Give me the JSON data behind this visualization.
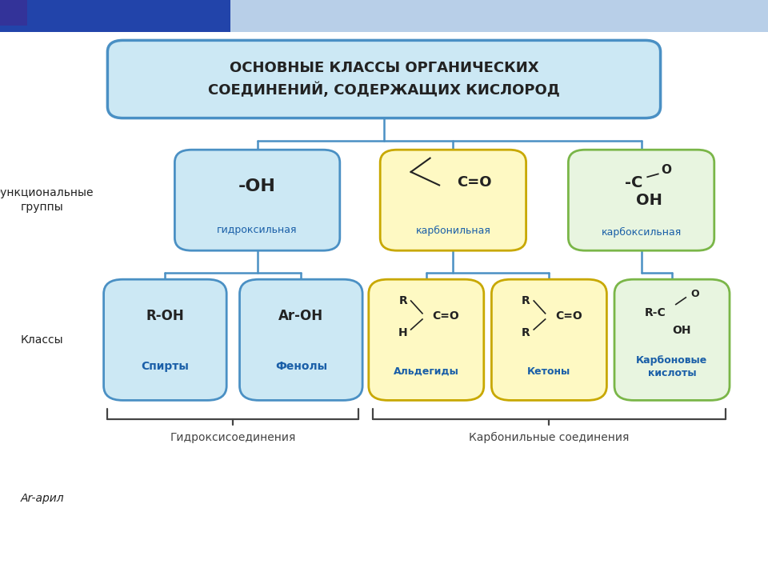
{
  "title": "ОСНОВНЫЕ КЛАССЫ ОРГАНИЧЕСКИХ\nСОЕДИНЕНИЙ, СОДЕРЖАЩИХ КИСЛОРОД",
  "bg_color": "#ffffff",
  "box_blue_bg": "#cce8f4",
  "box_blue_border": "#4a90c4",
  "box_yellow_bg": "#fef9c3",
  "box_yellow_border": "#c8a800",
  "box_green_bg": "#e8f5e0",
  "box_green_border": "#7ab648",
  "text_blue": "#1a5fa8",
  "text_dark": "#222222",
  "line_color": "#4a90c4",
  "brace_color": "#444444",
  "stripe_bg": "#b8cfe8",
  "stripe_dark": "#2244aa",
  "label_functional": "Функциональные\nгруппы",
  "label_classes": "Классы",
  "label_ar": "Ar-арил",
  "label_hydroxy": "Гидроксисоединения",
  "label_carbonyl": "Карбонильные соединения"
}
